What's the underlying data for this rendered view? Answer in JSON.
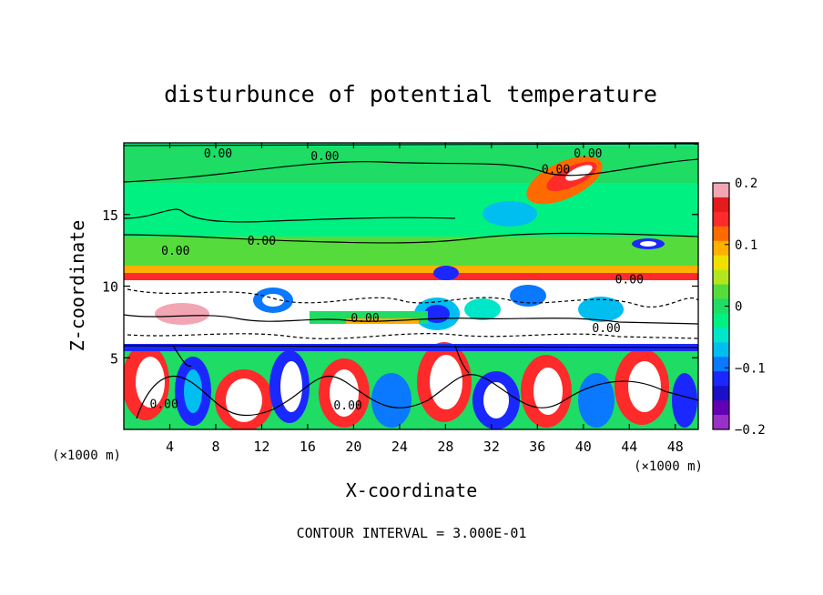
{
  "chart_data": {
    "type": "heatmap",
    "title": "disturbunce of potential temperature",
    "xlabel": "X-coordinate",
    "ylabel": "Z-coordinate",
    "x_unit": "(×1000 m)",
    "x_unit_left": "(×1000 m)",
    "xlim": [
      0,
      50
    ],
    "ylim": [
      0,
      20
    ],
    "x_ticks": [
      4,
      8,
      12,
      16,
      20,
      24,
      28,
      32,
      36,
      40,
      44,
      48
    ],
    "x_tick_labels": [
      "4",
      "8",
      "12",
      "16",
      "20",
      "24",
      "28",
      "32",
      "36",
      "40",
      "44",
      "48"
    ],
    "y_ticks": [
      5,
      10,
      15
    ],
    "y_tick_labels": [
      "5",
      "10",
      "15"
    ],
    "colorbar": {
      "range": [
        -0.2,
        0.2
      ],
      "tick_values": [
        0.2,
        0.1,
        0,
        -0.1,
        -0.2
      ],
      "tick_labels": [
        "0.2",
        "0.1",
        "0",
        "−0.1",
        "−0.2"
      ],
      "colors": [
        "#f2a6b4",
        "#e41a1c",
        "#ff2a2a",
        "#ff6a00",
        "#ffb000",
        "#f0e000",
        "#b4e61e",
        "#55dc3c",
        "#1edc64",
        "#00f082",
        "#00e6c8",
        "#00bef0",
        "#0a78ff",
        "#1a28ff",
        "#1a10c8",
        "#6400b4",
        "#9b30c8"
      ]
    },
    "contour_labels": [
      {
        "text": "0.00",
        "x": 8.2,
        "z": 19.3
      },
      {
        "text": "0.00",
        "x": 17.5,
        "z": 19.1
      },
      {
        "text": "0.00",
        "x": 40.4,
        "z": 19.3
      },
      {
        "text": "0.00",
        "x": 37.6,
        "z": 18.2
      },
      {
        "text": "0.00",
        "x": 4.5,
        "z": 12.5
      },
      {
        "text": "0.00",
        "x": 12.0,
        "z": 13.2
      },
      {
        "text": "0.00",
        "x": 21.0,
        "z": 7.8
      },
      {
        "text": "0.00",
        "x": 44.0,
        "z": 10.5
      },
      {
        "text": "0.00",
        "x": 42.0,
        "z": 7.1
      },
      {
        "text": "0.00",
        "x": 3.5,
        "z": 1.8
      },
      {
        "text": "0.00",
        "x": 19.5,
        "z": 1.7
      }
    ],
    "grid": false
  },
  "footer": {
    "contour_interval": "CONTOUR INTERVAL = 3.000E-01"
  }
}
